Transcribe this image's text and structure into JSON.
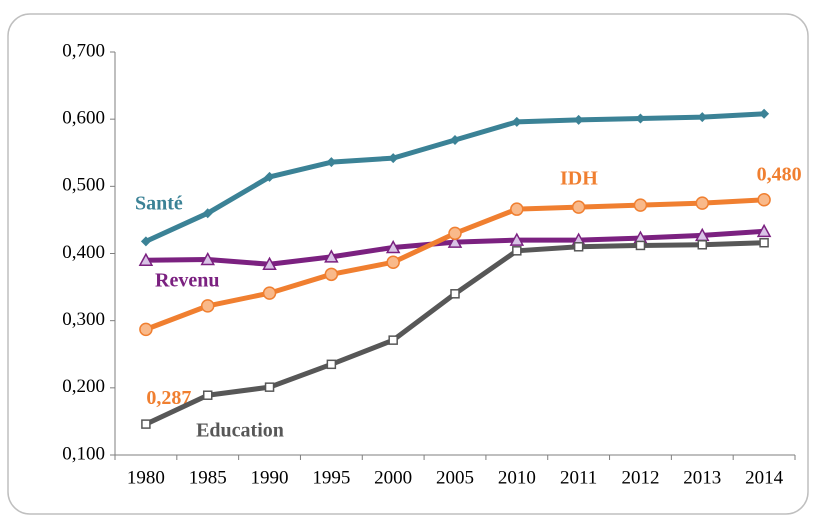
{
  "chart_data": {
    "type": "line",
    "categories": [
      "1980",
      "1985",
      "1990",
      "1995",
      "2000",
      "2005",
      "2010",
      "2011",
      "2012",
      "2013",
      "2014"
    ],
    "series": [
      {
        "name": "Santé",
        "color": "#3b8296",
        "marker": "diamond",
        "values": [
          0.418,
          0.46,
          0.514,
          0.536,
          0.542,
          0.569,
          0.596,
          0.599,
          0.601,
          0.603,
          0.608
        ]
      },
      {
        "name": "Revenu",
        "color": "#7b2180",
        "marker": "triangle",
        "values": [
          0.39,
          0.391,
          0.384,
          0.395,
          0.409,
          0.417,
          0.42,
          0.42,
          0.423,
          0.427,
          0.433
        ]
      },
      {
        "name": "IDH",
        "color": "#f07f30",
        "marker": "circle",
        "values": [
          0.287,
          0.322,
          0.341,
          0.369,
          0.387,
          0.43,
          0.466,
          0.469,
          0.472,
          0.475,
          0.48
        ],
        "value_labels": [
          "0,287",
          null,
          null,
          null,
          null,
          null,
          null,
          null,
          null,
          null,
          "0,480"
        ]
      },
      {
        "name": "Education",
        "color": "#575757",
        "marker": "square",
        "values": [
          0.146,
          0.189,
          0.201,
          0.235,
          0.271,
          0.34,
          0.404,
          0.41,
          0.412,
          0.413,
          0.416
        ]
      }
    ],
    "ylim": [
      0.1,
      0.7
    ],
    "yticks": [
      {
        "value": 0.1,
        "label": "0,100"
      },
      {
        "value": 0.2,
        "label": "0,200"
      },
      {
        "value": 0.3,
        "label": "0,300"
      },
      {
        "value": 0.4,
        "label": "0,400"
      },
      {
        "value": 0.5,
        "label": "0,500"
      },
      {
        "value": 0.6,
        "label": "0,600"
      },
      {
        "value": 0.7,
        "label": "0,700"
      }
    ],
    "grid": false
  }
}
